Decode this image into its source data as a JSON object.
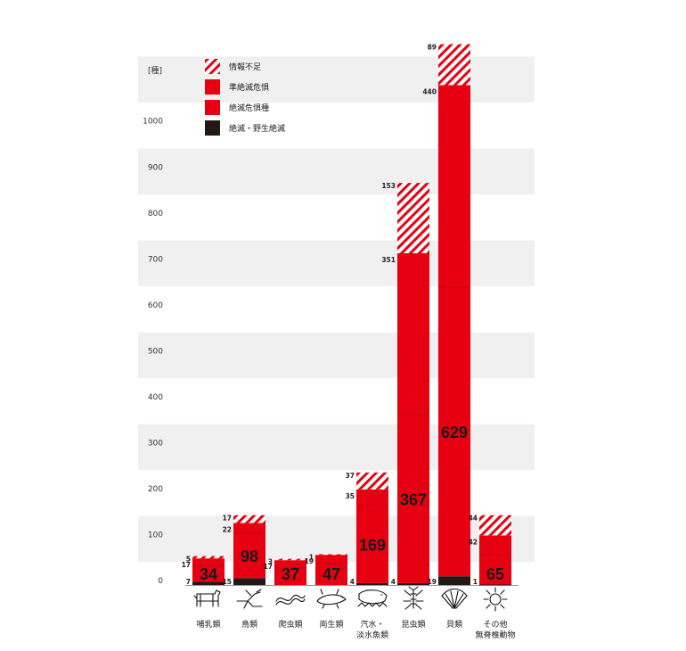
{
  "chart_data": {
    "type": "bar",
    "stacked": true,
    "unit_label": "[種]",
    "yticks": [
      0,
      100,
      200,
      300,
      400,
      500,
      600,
      700,
      800,
      900,
      1000
    ],
    "ylim": [
      0,
      1180
    ],
    "grid": "alternating horizontal bands",
    "legend_position": "top-left",
    "colors": {
      "extinct": "#231815",
      "endangered": "#e60012",
      "near_threatened": "#e60012",
      "data_deficient_stripe": "#e60012",
      "band": "#f0f0f0"
    },
    "categories": [
      {
        "label": [
          "哺乳類"
        ],
        "icon": "mammal-icon"
      },
      {
        "label": [
          "鳥類"
        ],
        "icon": "bird-icon"
      },
      {
        "label": [
          "爬虫類"
        ],
        "icon": "reptile-icon"
      },
      {
        "label": [
          "両生類"
        ],
        "icon": "amphibian-icon"
      },
      {
        "label": [
          "汽水・",
          "淡水魚類"
        ],
        "icon": "fish-icon"
      },
      {
        "label": [
          "昆虫類"
        ],
        "icon": "insect-icon"
      },
      {
        "label": [
          "貝類"
        ],
        "icon": "shell-icon"
      },
      {
        "label": [
          "その他",
          "無脊椎動物"
        ],
        "icon": "invertebrate-icon"
      }
    ],
    "series": [
      {
        "name": "絶滅・野生絶滅",
        "key": "extinct",
        "values": [
          7,
          15,
          0,
          0,
          4,
          4,
          19,
          1
        ]
      },
      {
        "name": "絶滅危惧種",
        "key": "endangered",
        "values": [
          34,
          98,
          37,
          47,
          169,
          367,
          629,
          65
        ]
      },
      {
        "name": "準絶滅危惧",
        "key": "near_threatened",
        "values": [
          17,
          22,
          17,
          19,
          35,
          351,
          440,
          42
        ]
      },
      {
        "name": "情報不足",
        "key": "data_deficient",
        "values": [
          5,
          17,
          3,
          1,
          37,
          153,
          89,
          44
        ]
      }
    ],
    "value_labels": [
      {
        "extinct": "7",
        "endangered": "34",
        "near_threatened": "17",
        "data_deficient": "5"
      },
      {
        "extinct": "15",
        "endangered": "98",
        "near_threatened": "22",
        "data_deficient": "17"
      },
      {
        "extinct": "",
        "endangered": "37",
        "near_threatened": "17",
        "data_deficient": "3"
      },
      {
        "extinct": "",
        "endangered": "47",
        "near_threatened": "19",
        "data_deficient": "1"
      },
      {
        "extinct": "4",
        "endangered": "169",
        "near_threatened": "35",
        "data_deficient": "37"
      },
      {
        "extinct": "4",
        "endangered": "367",
        "near_threatened": "351",
        "data_deficient": "153"
      },
      {
        "extinct": "19",
        "endangered": "629",
        "near_threatened": "440",
        "data_deficient": "89"
      },
      {
        "extinct": "1",
        "endangered": "65",
        "near_threatened": "42",
        "data_deficient": "44"
      }
    ],
    "legend": [
      {
        "key": "data_deficient",
        "label": "情報不足"
      },
      {
        "key": "near_threatened",
        "label": "準絶滅危惧"
      },
      {
        "key": "endangered",
        "label": "絶滅危惧種"
      },
      {
        "key": "extinct",
        "label": "絶滅・野生絶滅"
      }
    ]
  }
}
